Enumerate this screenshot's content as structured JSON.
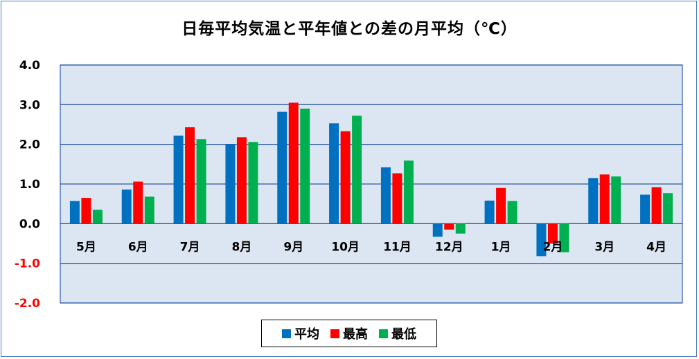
{
  "chart_data": {
    "type": "bar",
    "title": "日毎平均気温と平年値との差の月平均（℃）",
    "categories": [
      "5月",
      "6月",
      "7月",
      "8月",
      "9月",
      "10月",
      "11月",
      "12月",
      "1月",
      "2月",
      "3月",
      "4月"
    ],
    "series": [
      {
        "name": "平均",
        "color": "#0070c0",
        "values": [
          0.57,
          0.86,
          2.22,
          2.0,
          2.82,
          2.53,
          1.42,
          -0.33,
          0.58,
          -0.82,
          1.15,
          0.73
        ]
      },
      {
        "name": "最高",
        "color": "#ff0000",
        "values": [
          0.65,
          1.06,
          2.43,
          2.18,
          3.05,
          2.33,
          1.27,
          -0.15,
          0.9,
          -0.5,
          1.24,
          0.92
        ]
      },
      {
        "name": "最低",
        "color": "#00b050",
        "values": [
          0.35,
          0.68,
          2.13,
          2.06,
          2.9,
          2.72,
          1.59,
          -0.25,
          0.57,
          -0.72,
          1.19,
          0.77
        ]
      }
    ],
    "ylim": [
      -2.0,
      4.0
    ],
    "yticks": [
      "4.0",
      "3.0",
      "2.0",
      "1.0",
      "0.0",
      "-1.0",
      "-2.0"
    ],
    "ytick_values": [
      4.0,
      3.0,
      2.0,
      1.0,
      0.0,
      -1.0,
      -2.0
    ],
    "negative_tick_color": "#ff0000",
    "plot_background": "#dce6f2",
    "gridline_color": "#2e5aa8",
    "grid": true,
    "legend_position": "bottom"
  }
}
